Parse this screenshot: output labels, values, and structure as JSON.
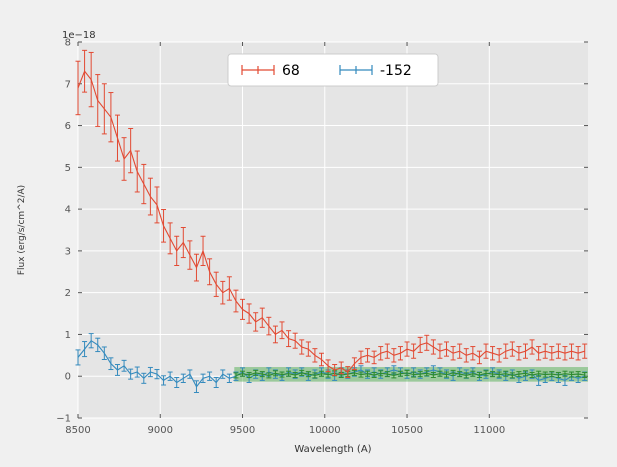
{
  "figure": {
    "bg_color": "#F0F0F0",
    "plot_bg_color": "#E5E5E5",
    "grid_color": "#FFFFFF",
    "tick_color": "#555555"
  },
  "chart_data": {
    "type": "line",
    "subtype": "errorbar-spectrum",
    "title": "",
    "xlabel": "Wavelength (A)",
    "ylabel": "Flux (erg/s/cm^2/A)",
    "offset_text": "1e−18",
    "xlim": [
      8500,
      11600
    ],
    "ylim": [
      -1,
      8
    ],
    "xticks": [
      8500,
      9000,
      9500,
      10000,
      10500,
      11000
    ],
    "yticks": [
      -1,
      0,
      1,
      2,
      3,
      4,
      5,
      6,
      7,
      8
    ],
    "grid": true,
    "legend": {
      "position": "upper center",
      "entries": [
        {
          "label": "68",
          "color": "#E24A33"
        },
        {
          "label": "-152",
          "color": "#348ABD"
        }
      ]
    },
    "band": {
      "x_start": 9450,
      "x_end": 11600,
      "y_low": -0.13,
      "y_high": 0.22,
      "color": "#2CA02C",
      "alpha": 0.4
    },
    "series": [
      {
        "name": "-152",
        "color": "#348ABD",
        "x": [
          8500,
          8540,
          8580,
          8620,
          8660,
          8700,
          8740,
          8780,
          8820,
          8860,
          8900,
          8940,
          8980,
          9020,
          9060,
          9100,
          9140,
          9180,
          9220,
          9260,
          9300,
          9340,
          9380,
          9420,
          9460,
          9500,
          9540,
          9580,
          9620,
          9660,
          9700,
          9740,
          9780,
          9820,
          9860,
          9900,
          9940,
          9980,
          10020,
          10060,
          10100,
          10140,
          10180,
          10220,
          10260,
          10300,
          10340,
          10380,
          10420,
          10460,
          10500,
          10540,
          10580,
          10620,
          10660,
          10700,
          10740,
          10780,
          10820,
          10860,
          10900,
          10940,
          10980,
          11020,
          11060,
          11100,
          11140,
          11180,
          11220,
          11260,
          11300,
          11340,
          11380,
          11420,
          11460,
          11500,
          11540,
          11580
        ],
        "y": [
          0.45,
          0.65,
          0.85,
          0.75,
          0.55,
          0.3,
          0.15,
          0.25,
          0.05,
          0.1,
          -0.05,
          0.1,
          0.05,
          -0.1,
          0.0,
          -0.15,
          -0.05,
          0.05,
          -0.25,
          -0.05,
          0.0,
          -0.15,
          0.05,
          -0.05,
          0.0,
          0.1,
          -0.05,
          0.05,
          0.0,
          0.1,
          0.05,
          0.0,
          0.1,
          0.05,
          0.1,
          0.0,
          0.05,
          0.1,
          0.05,
          0.0,
          0.1,
          0.05,
          0.1,
          0.15,
          0.05,
          0.1,
          0.05,
          0.1,
          0.15,
          0.1,
          0.05,
          0.1,
          0.05,
          0.1,
          0.15,
          0.1,
          0.05,
          0.0,
          0.1,
          0.05,
          0.1,
          0.0,
          0.05,
          0.1,
          0.05,
          0.0,
          0.05,
          -0.05,
          0.0,
          0.05,
          -0.1,
          -0.05,
          0.0,
          -0.05,
          -0.1,
          0.0,
          -0.05,
          0.0
        ],
        "yerr": [
          0.18,
          0.18,
          0.17,
          0.16,
          0.15,
          0.14,
          0.13,
          0.13,
          0.12,
          0.12,
          0.12,
          0.11,
          0.11,
          0.11,
          0.1,
          0.12,
          0.1,
          0.1,
          0.14,
          0.1,
          0.1,
          0.12,
          0.1,
          0.1,
          0.1,
          0.1,
          0.1,
          0.1,
          0.1,
          0.1,
          0.1,
          0.1,
          0.1,
          0.1,
          0.1,
          0.1,
          0.1,
          0.1,
          0.1,
          0.1,
          0.1,
          0.1,
          0.1,
          0.1,
          0.1,
          0.1,
          0.1,
          0.1,
          0.1,
          0.1,
          0.1,
          0.1,
          0.1,
          0.1,
          0.1,
          0.1,
          0.1,
          0.1,
          0.1,
          0.1,
          0.1,
          0.1,
          0.1,
          0.1,
          0.1,
          0.1,
          0.1,
          0.1,
          0.1,
          0.1,
          0.12,
          0.1,
          0.1,
          0.1,
          0.12,
          0.1,
          0.1,
          0.1
        ]
      },
      {
        "name": "band-points",
        "color": "#2E8B2E",
        "x": [
          9460,
          9500,
          9540,
          9580,
          9620,
          9660,
          9700,
          9740,
          9780,
          9820,
          9860,
          9900,
          9940,
          9980,
          10020,
          10060,
          10100,
          10140,
          10180,
          10220,
          10260,
          10300,
          10340,
          10380,
          10420,
          10460,
          10500,
          10540,
          10580,
          10620,
          10660,
          10700,
          10740,
          10780,
          10820,
          10860,
          10900,
          10940,
          10980,
          11020,
          11060,
          11100,
          11140,
          11180,
          11220,
          11260,
          11300,
          11340,
          11380,
          11420,
          11460,
          11500,
          11540,
          11580
        ],
        "y": [
          0.02,
          0.06,
          0.03,
          0.08,
          0.05,
          0.02,
          0.07,
          0.04,
          0.06,
          0.03,
          0.08,
          0.05,
          0.02,
          0.06,
          0.04,
          0.07,
          0.03,
          0.05,
          0.08,
          0.04,
          0.06,
          0.03,
          0.07,
          0.05,
          0.02,
          0.06,
          0.08,
          0.04,
          0.05,
          0.07,
          0.03,
          0.06,
          0.04,
          0.08,
          0.05,
          0.02,
          0.06,
          0.03,
          0.07,
          0.05,
          0.04,
          0.06,
          0.02,
          0.05,
          0.07,
          0.03,
          0.06,
          0.04,
          0.05,
          0.03,
          0.06,
          0.04,
          0.05,
          0.03
        ],
        "yerr": 0.06
      },
      {
        "name": "68",
        "color": "#E24A33",
        "x": [
          8500,
          8540,
          8580,
          8620,
          8660,
          8700,
          8740,
          8780,
          8820,
          8860,
          8900,
          8940,
          8980,
          9020,
          9060,
          9100,
          9140,
          9180,
          9220,
          9260,
          9300,
          9340,
          9380,
          9420,
          9460,
          9500,
          9540,
          9580,
          9620,
          9660,
          9700,
          9740,
          9780,
          9820,
          9860,
          9900,
          9940,
          9980,
          10020,
          10060,
          10100,
          10140,
          10180,
          10220,
          10260,
          10300,
          10340,
          10380,
          10420,
          10460,
          10500,
          10540,
          10580,
          10620,
          10660,
          10700,
          10740,
          10780,
          10820,
          10860,
          10900,
          10940,
          10980,
          11020,
          11060,
          11100,
          11140,
          11180,
          11220,
          11260,
          11300,
          11340,
          11380,
          11420,
          11460,
          11500,
          11540,
          11580
        ],
        "y": [
          6.9,
          7.3,
          7.1,
          6.6,
          6.4,
          6.2,
          5.7,
          5.2,
          5.4,
          4.9,
          4.6,
          4.3,
          4.1,
          3.6,
          3.3,
          3.0,
          3.2,
          2.9,
          2.6,
          3.0,
          2.5,
          2.2,
          2.0,
          2.1,
          1.8,
          1.6,
          1.5,
          1.3,
          1.4,
          1.2,
          1.0,
          1.1,
          0.9,
          0.85,
          0.7,
          0.65,
          0.5,
          0.4,
          0.25,
          0.15,
          0.2,
          0.1,
          0.3,
          0.45,
          0.5,
          0.45,
          0.55,
          0.6,
          0.5,
          0.55,
          0.65,
          0.6,
          0.75,
          0.8,
          0.7,
          0.6,
          0.65,
          0.55,
          0.6,
          0.5,
          0.55,
          0.45,
          0.6,
          0.55,
          0.5,
          0.6,
          0.65,
          0.55,
          0.6,
          0.7,
          0.55,
          0.6,
          0.55,
          0.6,
          0.55,
          0.6,
          0.55,
          0.6
        ],
        "yerr": [
          0.64,
          0.5,
          0.65,
          0.62,
          0.6,
          0.59,
          0.55,
          0.51,
          0.53,
          0.49,
          0.47,
          0.44,
          0.43,
          0.39,
          0.37,
          0.35,
          0.36,
          0.34,
          0.32,
          0.35,
          0.31,
          0.29,
          0.27,
          0.28,
          0.26,
          0.24,
          0.23,
          0.22,
          0.23,
          0.21,
          0.2,
          0.2,
          0.19,
          0.18,
          0.17,
          0.17,
          0.16,
          0.15,
          0.14,
          0.13,
          0.14,
          0.13,
          0.14,
          0.15,
          0.16,
          0.15,
          0.16,
          0.17,
          0.16,
          0.16,
          0.17,
          0.17,
          0.18,
          0.18,
          0.17,
          0.17,
          0.17,
          0.16,
          0.17,
          0.16,
          0.16,
          0.15,
          0.17,
          0.16,
          0.16,
          0.17,
          0.17,
          0.16,
          0.17,
          0.17,
          0.16,
          0.17,
          0.16,
          0.17,
          0.16,
          0.17,
          0.16,
          0.17
        ]
      }
    ]
  }
}
